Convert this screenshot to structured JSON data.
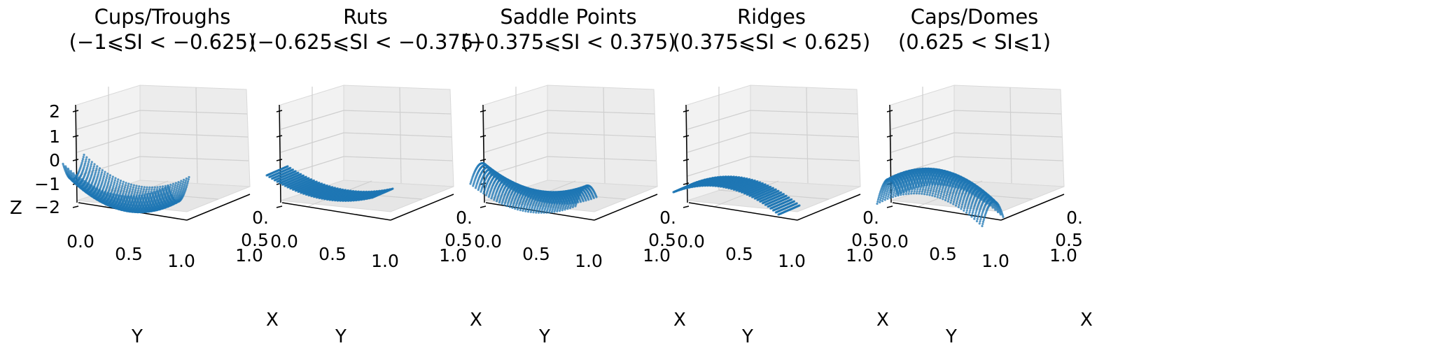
{
  "chart_data": {
    "type": "scatter",
    "marker_color": "#1f77b4",
    "pane_color": "#f2f2f2",
    "grid": true,
    "axis_labels": {
      "x": "X",
      "y": "Y",
      "z": "Z"
    },
    "x_ticks": [
      "0.",
      "0.5",
      "1.0"
    ],
    "y_ticks": [
      "0.0",
      "0.5",
      "1.0"
    ],
    "z_ticks": [
      "2",
      "1",
      "0",
      "−1",
      "−2"
    ],
    "zlim": [
      -2,
      2
    ],
    "panels": [
      {
        "title": "Cups/Troughs",
        "range": "(−1⩽SI < −0.625)",
        "surface": "cup"
      },
      {
        "title": "Ruts",
        "range": "(−0.625⩽SI < −0.375)",
        "surface": "rut"
      },
      {
        "title": "Saddle Points",
        "range": "(−0.375⩽SI < 0.375)",
        "surface": "saddle"
      },
      {
        "title": "Ridges",
        "range": "(0.375⩽SI < 0.625)",
        "surface": "ridge"
      },
      {
        "title": "Caps/Domes",
        "range": "(0.625 < SI⩽1)",
        "surface": "cap"
      }
    ]
  }
}
